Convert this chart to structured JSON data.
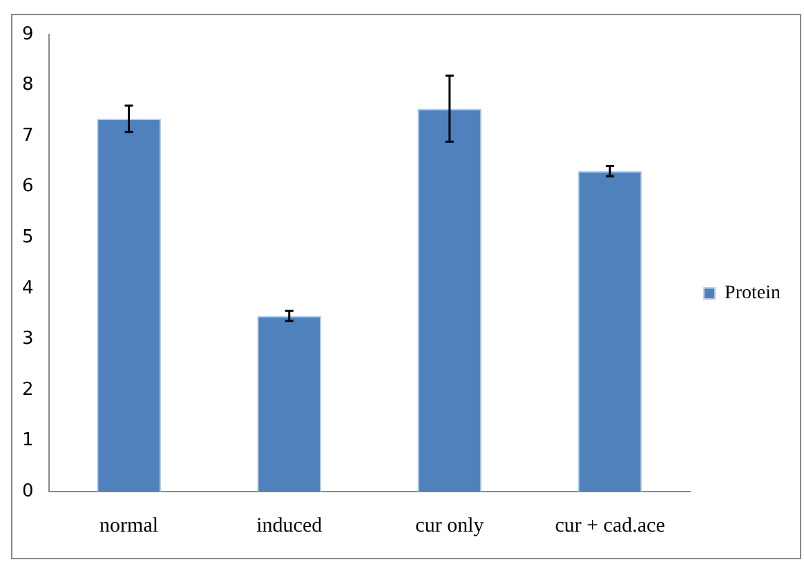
{
  "chart_data": {
    "type": "bar",
    "categories": [
      "normal",
      "induced",
      "cur only",
      "cur + cad.ace"
    ],
    "series": [
      {
        "name": "Protein",
        "color": "#4f81bd",
        "values": [
          7.34,
          3.46,
          7.54,
          6.31
        ],
        "errors": [
          0.26,
          0.1,
          0.65,
          0.1
        ]
      }
    ],
    "ylim": [
      0,
      9
    ],
    "yticks": [
      0,
      1,
      2,
      3,
      4,
      5,
      6,
      7,
      8,
      9
    ],
    "grid": false,
    "legend": "right"
  }
}
